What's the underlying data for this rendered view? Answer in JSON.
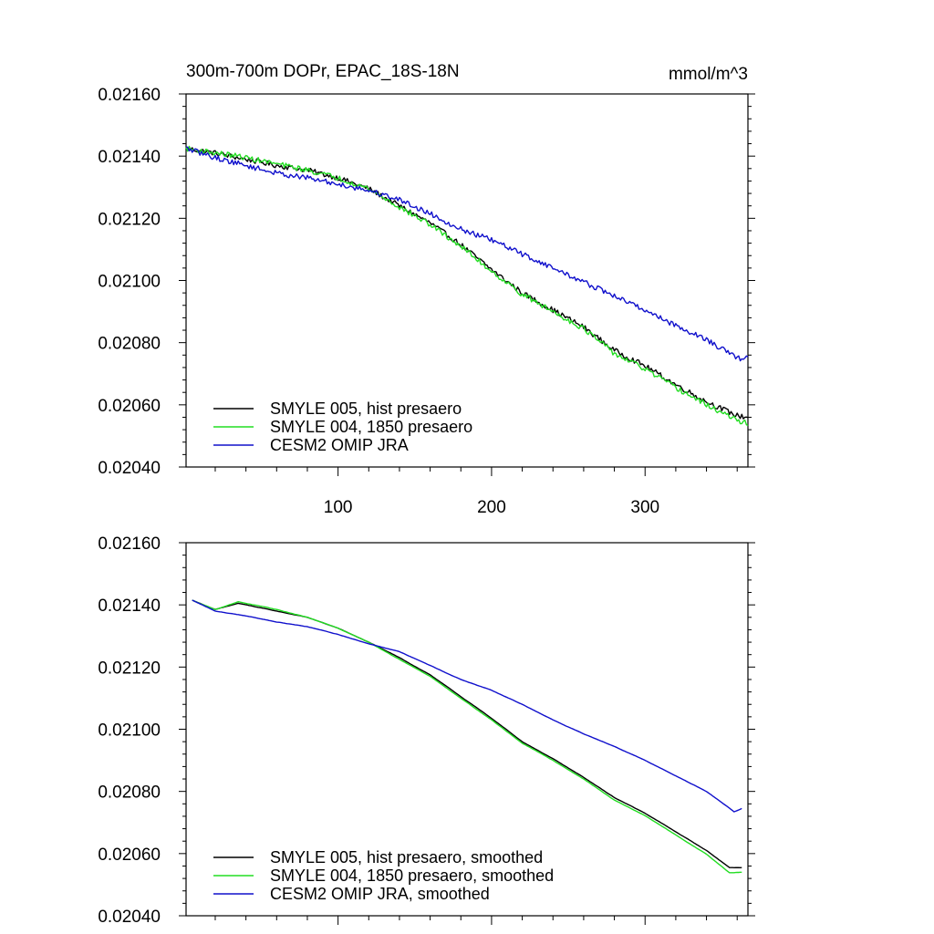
{
  "figure": {
    "title": "300m-700m DOPr, EPAC_18S-18N",
    "units": "mmol/m^3"
  },
  "colors": {
    "hist": "#000000",
    "pi1850": "#22dd22",
    "omip": "#1010cc"
  },
  "chart_data": [
    {
      "type": "line",
      "title": "300m-700m DOPr, EPAC_18S-18N",
      "units": "mmol/m^3",
      "xlim": [
        1,
        367
      ],
      "ylim": [
        0.0204,
        0.0216
      ],
      "x_ticks": [
        100,
        200,
        300
      ],
      "x_tick_labels": [
        "100",
        "200",
        "300"
      ],
      "y_ticks": [
        0.0204,
        0.0206,
        0.0208,
        0.021,
        0.0212,
        0.0214,
        0.0216
      ],
      "y_tick_labels": [
        "0.02040",
        "0.02060",
        "0.02080",
        "0.02100",
        "0.02120",
        "0.02140",
        "0.02160"
      ],
      "legend_position": "bottom-left",
      "smoothed": false,
      "series": [
        {
          "name": "SMYLE 005, hist presaero",
          "color_key": "hist",
          "keypoints": [
            [
              1,
              0.021425
            ],
            [
              20,
              0.02141
            ],
            [
              35,
              0.021395
            ],
            [
              60,
              0.02137
            ],
            [
              80,
              0.021355
            ],
            [
              100,
              0.02133
            ],
            [
              120,
              0.021295
            ],
            [
              140,
              0.02124
            ],
            [
              160,
              0.021185
            ],
            [
              180,
              0.021115
            ],
            [
              200,
              0.021035
            ],
            [
              220,
              0.02096
            ],
            [
              240,
              0.020905
            ],
            [
              260,
              0.02085
            ],
            [
              280,
              0.020775
            ],
            [
              300,
              0.020725
            ],
            [
              320,
              0.020665
            ],
            [
              340,
              0.02061
            ],
            [
              360,
              0.020565
            ],
            [
              367,
              0.02056
            ]
          ]
        },
        {
          "name": "SMYLE 004, 1850 presaero",
          "color_key": "pi1850",
          "keypoints": [
            [
              1,
              0.021425
            ],
            [
              20,
              0.02141
            ],
            [
              35,
              0.0214
            ],
            [
              60,
              0.021375
            ],
            [
              80,
              0.021355
            ],
            [
              100,
              0.02133
            ],
            [
              120,
              0.021295
            ],
            [
              140,
              0.021235
            ],
            [
              160,
              0.02118
            ],
            [
              180,
              0.02111
            ],
            [
              200,
              0.02103
            ],
            [
              220,
              0.020955
            ],
            [
              240,
              0.0209
            ],
            [
              260,
              0.020845
            ],
            [
              280,
              0.020765
            ],
            [
              300,
              0.020715
            ],
            [
              320,
              0.020655
            ],
            [
              340,
              0.0206
            ],
            [
              360,
              0.02055
            ],
            [
              367,
              0.02054
            ]
          ]
        },
        {
          "name": "CESM2 OMIP JRA",
          "color_key": "omip",
          "keypoints": [
            [
              1,
              0.021425
            ],
            [
              20,
              0.021395
            ],
            [
              40,
              0.02137
            ],
            [
              60,
              0.021345
            ],
            [
              80,
              0.02133
            ],
            [
              100,
              0.02131
            ],
            [
              120,
              0.02129
            ],
            [
              140,
              0.02126
            ],
            [
              160,
              0.021215
            ],
            [
              180,
              0.021165
            ],
            [
              200,
              0.02113
            ],
            [
              220,
              0.021085
            ],
            [
              240,
              0.02104
            ],
            [
              260,
              0.020995
            ],
            [
              280,
              0.02095
            ],
            [
              300,
              0.020905
            ],
            [
              320,
              0.020855
            ],
            [
              340,
              0.02081
            ],
            [
              360,
              0.02075
            ],
            [
              367,
              0.02075
            ]
          ]
        }
      ]
    },
    {
      "type": "line",
      "xlim": [
        1,
        367
      ],
      "ylim": [
        0.0204,
        0.0216
      ],
      "x_ticks": [
        100,
        200,
        300
      ],
      "y_ticks": [
        0.0204,
        0.0206,
        0.0208,
        0.021,
        0.0212,
        0.0214,
        0.0216
      ],
      "y_tick_labels": [
        "0.02040",
        "0.02060",
        "0.02080",
        "0.02100",
        "0.02120",
        "0.02140",
        "0.02160"
      ],
      "legend_position": "bottom-left",
      "smoothed": true,
      "series": [
        {
          "name": "SMYLE 005, hist presaero, smoothed",
          "color_key": "hist",
          "keypoints": [
            [
              5,
              0.021415
            ],
            [
              20,
              0.021385
            ],
            [
              35,
              0.021405
            ],
            [
              60,
              0.02138
            ],
            [
              80,
              0.02136
            ],
            [
              100,
              0.021325
            ],
            [
              120,
              0.02128
            ],
            [
              140,
              0.02123
            ],
            [
              160,
              0.021175
            ],
            [
              180,
              0.021105
            ],
            [
              200,
              0.021035
            ],
            [
              220,
              0.02096
            ],
            [
              240,
              0.020905
            ],
            [
              260,
              0.020845
            ],
            [
              280,
              0.02078
            ],
            [
              300,
              0.02073
            ],
            [
              320,
              0.02067
            ],
            [
              340,
              0.02061
            ],
            [
              355,
              0.020555
            ],
            [
              363,
              0.020555
            ]
          ]
        },
        {
          "name": "SMYLE 004, 1850 presaero, smoothed",
          "color_key": "pi1850",
          "keypoints": [
            [
              5,
              0.021415
            ],
            [
              20,
              0.021385
            ],
            [
              35,
              0.02141
            ],
            [
              60,
              0.021385
            ],
            [
              80,
              0.02136
            ],
            [
              100,
              0.021325
            ],
            [
              120,
              0.02128
            ],
            [
              140,
              0.021225
            ],
            [
              160,
              0.02117
            ],
            [
              180,
              0.0211
            ],
            [
              200,
              0.02103
            ],
            [
              220,
              0.020955
            ],
            [
              240,
              0.0209
            ],
            [
              260,
              0.02084
            ],
            [
              280,
              0.020772
            ],
            [
              300,
              0.020722
            ],
            [
              320,
              0.02066
            ],
            [
              340,
              0.020598
            ],
            [
              355,
              0.020538
            ],
            [
              363,
              0.02054
            ]
          ]
        },
        {
          "name": "CESM2 OMIP JRA, smoothed",
          "color_key": "omip",
          "keypoints": [
            [
              5,
              0.021415
            ],
            [
              20,
              0.02138
            ],
            [
              40,
              0.021365
            ],
            [
              60,
              0.021345
            ],
            [
              80,
              0.02133
            ],
            [
              100,
              0.021305
            ],
            [
              120,
              0.021275
            ],
            [
              140,
              0.02125
            ],
            [
              160,
              0.021205
            ],
            [
              180,
              0.02116
            ],
            [
              200,
              0.021125
            ],
            [
              220,
              0.02108
            ],
            [
              240,
              0.02103
            ],
            [
              260,
              0.020985
            ],
            [
              280,
              0.020945
            ],
            [
              300,
              0.0209
            ],
            [
              320,
              0.02085
            ],
            [
              340,
              0.0208
            ],
            [
              358,
              0.020735
            ],
            [
              363,
              0.020745
            ]
          ]
        }
      ]
    }
  ]
}
